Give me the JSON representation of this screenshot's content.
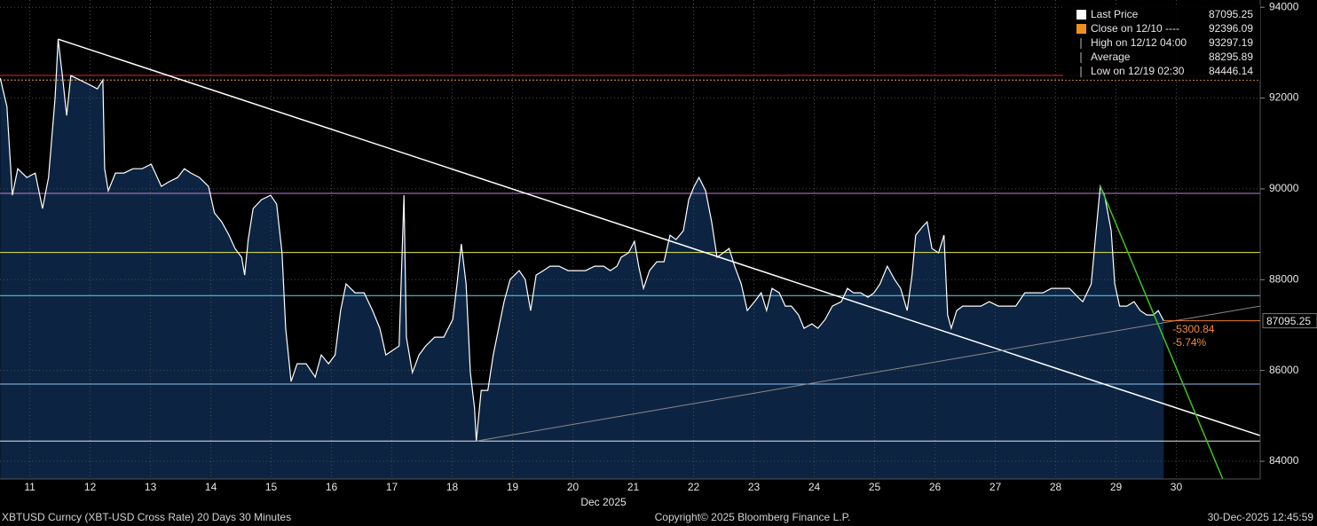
{
  "chart_data": {
    "type": "area",
    "x": [
      11.21,
      11.32,
      11.41,
      11.5,
      11.65,
      11.79,
      11.91,
      12.01,
      12.12,
      12.17,
      12.24,
      12.31,
      12.38,
      12.53,
      12.68,
      12.82,
      12.91,
      12.94,
      13.0,
      13.12,
      13.26,
      13.41,
      13.56,
      13.71,
      13.78,
      13.88,
      14.0,
      14.15,
      14.26,
      14.37,
      14.51,
      14.66,
      14.76,
      14.88,
      15.0,
      15.1,
      15.21,
      15.26,
      15.32,
      15.4,
      15.54,
      15.69,
      15.79,
      15.88,
      15.94,
      16.03,
      16.13,
      16.28,
      16.43,
      16.53,
      16.65,
      16.76,
      16.85,
      16.94,
      17.09,
      17.24,
      17.38,
      17.5,
      17.6,
      17.71,
      17.82,
      17.9,
      17.94,
      18.04,
      18.15,
      18.26,
      18.41,
      18.56,
      18.71,
      18.78,
      18.85,
      18.93,
      19.0,
      19.07,
      19.1,
      19.18,
      19.29,
      19.38,
      19.47,
      19.56,
      19.66,
      19.81,
      19.91,
      20.0,
      20.09,
      20.21,
      20.32,
      20.47,
      20.62,
      20.76,
      20.91,
      21.06,
      21.21,
      21.32,
      21.43,
      21.5,
      21.62,
      21.72,
      21.79,
      21.87,
      21.97,
      22.09,
      22.21,
      22.31,
      22.41,
      22.53,
      22.62,
      22.71,
      22.79,
      22.9,
      23.0,
      23.09,
      23.19,
      23.29,
      23.38,
      23.49,
      23.59,
      23.71,
      23.82,
      23.91,
      24.0,
      24.12,
      24.22,
      24.32,
      24.44,
      24.53,
      24.66,
      24.76,
      24.88,
      25.0,
      25.15,
      25.25,
      25.35,
      25.47,
      25.59,
      25.69,
      25.79,
      25.91,
      26.03,
      26.13,
      26.24,
      26.32,
      26.38,
      26.5,
      26.57,
      26.65,
      26.76,
      26.85,
      26.91,
      26.97,
      27.06,
      27.16,
      27.31,
      27.46,
      27.6,
      27.75,
      27.9,
      28.04,
      28.19,
      28.34,
      28.49,
      28.63,
      28.78,
      28.93,
      29.07,
      29.15,
      29.22,
      29.29,
      29.37,
      29.44,
      29.51,
      29.62,
      29.68,
      29.76,
      29.88,
      30.0,
      30.1,
      30.21,
      30.32,
      30.4,
      30.49
    ],
    "values": [
      92438,
      91813,
      89860,
      90445,
      90250,
      90348,
      89566,
      90250,
      92008,
      93297.19,
      92496,
      91617,
      92496,
      92398,
      92301,
      92203,
      92398,
      90445,
      89957,
      90348,
      90348,
      90445,
      90445,
      90543,
      90348,
      90055,
      90152,
      90250,
      90445,
      90348,
      90250,
      90055,
      89469,
      89273,
      88980,
      88687,
      88492,
      88102,
      88883,
      89566,
      89762,
      89860,
      89664,
      88590,
      86930,
      85758,
      86148,
      86148,
      85855,
      86344,
      86148,
      86344,
      87320,
      87906,
      87711,
      87711,
      87320,
      86930,
      86344,
      86441,
      86539,
      89860,
      86734,
      85953,
      86344,
      86539,
      86734,
      86734,
      87125,
      87906,
      88785,
      87906,
      85953,
      85172,
      84446.14,
      85562,
      85562,
      86344,
      86930,
      87516,
      88004,
      88199,
      88004,
      87320,
      88102,
      88199,
      88297,
      88297,
      88199,
      88199,
      88199,
      88297,
      88297,
      88199,
      88297,
      88492,
      88590,
      88844,
      88297,
      87809,
      88199,
      88395,
      88395,
      88980,
      88883,
      89078,
      89762,
      90055,
      90250,
      89957,
      89273,
      88492,
      88590,
      88687,
      88297,
      87906,
      87320,
      87516,
      87711,
      87320,
      87809,
      87711,
      87418,
      87418,
      87223,
      86930,
      87027,
      86930,
      87125,
      87418,
      87516,
      87809,
      87711,
      87711,
      87613,
      87711,
      87906,
      88297,
      88004,
      87809,
      87320,
      88102,
      88980,
      89176,
      89273,
      88687,
      88590,
      88980,
      87223,
      86930,
      87320,
      87418,
      87418,
      87418,
      87516,
      87418,
      87418,
      87418,
      87711,
      87711,
      87711,
      87809,
      87809,
      87809,
      87613,
      87516,
      87711,
      87906,
      89078,
      90055,
      89860,
      89078,
      87906,
      87418,
      87418,
      87516,
      87320,
      87223,
      87223,
      87320,
      87095.25
    ],
    "line_color": "#ffffff",
    "fill_color": "#0c2442",
    "xlim": [
      11.206,
      32.09
    ],
    "ylim": [
      83610,
      94160
    ],
    "xticks": [
      {
        "value": 11.7,
        "label": "11"
      },
      {
        "value": 12.7,
        "label": "12"
      },
      {
        "value": 13.7,
        "label": "13"
      },
      {
        "value": 14.7,
        "label": "14"
      },
      {
        "value": 15.7,
        "label": "15"
      },
      {
        "value": 16.7,
        "label": "16"
      },
      {
        "value": 17.7,
        "label": "17"
      },
      {
        "value": 18.7,
        "label": "18"
      },
      {
        "value": 19.7,
        "label": "19"
      },
      {
        "value": 20.7,
        "label": "20"
      },
      {
        "value": 21.7,
        "label": "21"
      },
      {
        "value": 22.7,
        "label": "22"
      },
      {
        "value": 23.7,
        "label": "23"
      },
      {
        "value": 24.7,
        "label": "24"
      },
      {
        "value": 25.7,
        "label": "25"
      },
      {
        "value": 26.7,
        "label": "26"
      },
      {
        "value": 27.7,
        "label": "27"
      },
      {
        "value": 28.7,
        "label": "28"
      },
      {
        "value": 29.7,
        "label": "29"
      },
      {
        "value": 30.7,
        "label": "30"
      }
    ],
    "yticks": [
      84000,
      86000,
      88000,
      90000,
      92000,
      94000
    ],
    "grid": true,
    "x_axis_label": "Dec 2025",
    "hlines": [
      {
        "value": 92500,
        "color": "#e0262b",
        "dash": false
      },
      {
        "value": 92396.09,
        "color": "#f0a040",
        "dash": true
      },
      {
        "value": 89900,
        "color": "#c080d0",
        "dash": false
      },
      {
        "value": 88600,
        "color": "#e8e84a",
        "dash": false
      },
      {
        "value": 87650,
        "color": "#60d8e8",
        "dash": false
      },
      {
        "value": 85700,
        "color": "#90c0f0",
        "dash": false
      },
      {
        "value": 84446.14,
        "color": "#e8e8e8",
        "dash": false
      }
    ],
    "trendlines": [
      {
        "x": [
          12.17,
          32.09
        ],
        "values": [
          93297.19,
          84566
        ],
        "color": "#ffffff",
        "width": 1.5
      },
      {
        "x": [
          19.1,
          32.09
        ],
        "values": [
          84446.14,
          87418
        ],
        "color": "#8a8a8a",
        "width": 1
      },
      {
        "x": [
          29.44,
          31.47
        ],
        "values": [
          90055,
          83609
        ],
        "color": "#3ec41e",
        "width": 1.5
      }
    ],
    "legend": [
      {
        "label": "Last Price",
        "value": "87095.25",
        "color": "#ffffff"
      },
      {
        "label": "Close on 12/10 ----",
        "value": "92396.09",
        "color": "#f0901c"
      },
      {
        "label": "High on 12/12 04:00",
        "value": "93297.19",
        "color": "#bbbbbb"
      },
      {
        "label": "Average",
        "value": "88295.89",
        "color": "#bbbbbb"
      },
      {
        "label": "Low on 12/19 02:30",
        "value": "84446.14",
        "color": "#bbbbbb"
      }
    ],
    "last_line_color": "#f07a30",
    "annotations": [
      {
        "text": "-5300.84",
        "color": "#f08a3c"
      },
      {
        "text": "-5.74%",
        "color": "#f08a3c"
      }
    ],
    "footer_left": "XBTUSD Curncy (XBT-USD Cross Rate) 20 Days 30 Minutes",
    "footer_center": "Copyright© 2025 Bloomberg Finance L.P.",
    "footer_right": "30-Dec-2025 12:45:59"
  }
}
